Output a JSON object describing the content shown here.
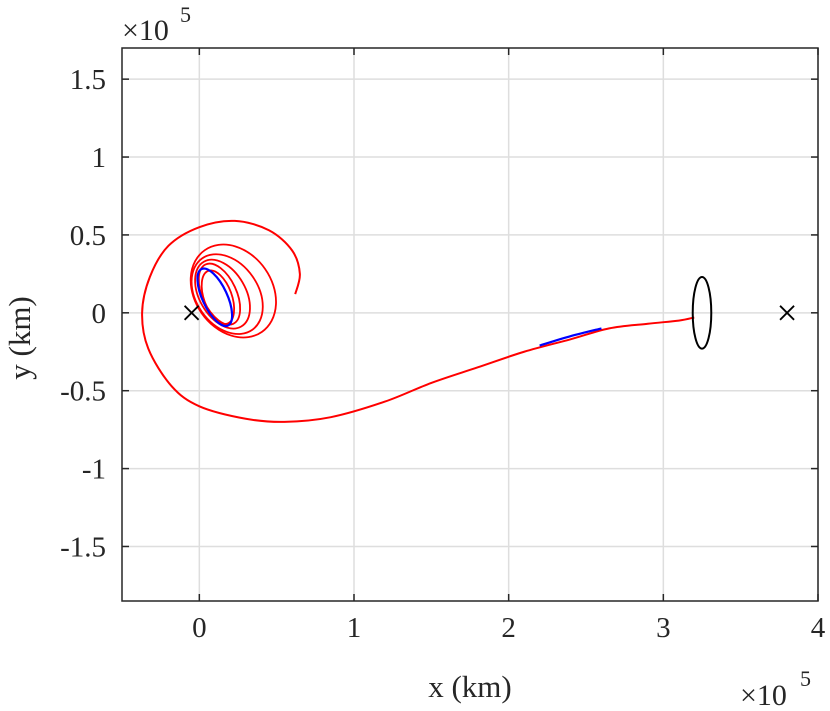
{
  "chart_data": {
    "type": "line",
    "xlabel": "x (km)",
    "ylabel": "y (km)",
    "x_exponent_label": "×10",
    "x_exponent_power": "5",
    "y_exponent_label": "×10",
    "y_exponent_power": "5",
    "xlim": [
      -0.5,
      4
    ],
    "ylim": [
      -1.85,
      1.7
    ],
    "xticks": [
      {
        "value": 0,
        "label": "0"
      },
      {
        "value": 1,
        "label": "1"
      },
      {
        "value": 2,
        "label": "2"
      },
      {
        "value": 3,
        "label": "3"
      },
      {
        "value": 4,
        "label": "4"
      }
    ],
    "yticks": [
      {
        "value": 1.5,
        "label": "1.5"
      },
      {
        "value": 1,
        "label": "1"
      },
      {
        "value": 0.5,
        "label": "0.5"
      },
      {
        "value": 0,
        "label": "0"
      },
      {
        "value": -0.5,
        "label": "-0.5"
      },
      {
        "value": -1,
        "label": "-1"
      },
      {
        "value": -1.5,
        "label": "-1.5"
      }
    ],
    "grid": true,
    "colors": {
      "red": "#ff0000",
      "blue": "#0000ff",
      "black": "#000000",
      "grid": "#dedede",
      "axis": "#262626"
    },
    "markers": [
      {
        "x": -0.05,
        "y": 0.0
      },
      {
        "x": 3.8,
        "y": 0.0
      }
    ],
    "black_orbit": {
      "cx": 3.25,
      "cy": 0.0,
      "rx": 0.06,
      "ry": 0.23
    },
    "red_loops": [
      {
        "cx": 0.13,
        "cy": 0.12,
        "rx": 0.11,
        "ry": 0.21,
        "rot": -25
      },
      {
        "cx": 0.15,
        "cy": 0.12,
        "rx": 0.15,
        "ry": 0.24,
        "rot": -30
      },
      {
        "cx": 0.18,
        "cy": 0.12,
        "rx": 0.2,
        "ry": 0.28,
        "rot": -35
      },
      {
        "cx": 0.22,
        "cy": 0.14,
        "rx": 0.25,
        "ry": 0.32,
        "rot": -35
      },
      {
        "cx": 0.12,
        "cy": 0.1,
        "rx": 0.09,
        "ry": 0.18,
        "rot": -20
      }
    ],
    "blue_loop": {
      "cx": 0.1,
      "cy": 0.1,
      "rx": 0.08,
      "ry": 0.2,
      "rot": -25
    },
    "red_spiral": [
      [
        0.62,
        0.12
      ],
      [
        0.65,
        0.25
      ],
      [
        0.6,
        0.4
      ],
      [
        0.45,
        0.53
      ],
      [
        0.23,
        0.59
      ],
      [
        0.0,
        0.55
      ],
      [
        -0.2,
        0.43
      ],
      [
        -0.32,
        0.23
      ],
      [
        -0.37,
        0.0
      ],
      [
        -0.33,
        -0.23
      ],
      [
        -0.18,
        -0.47
      ],
      [
        0.0,
        -0.6
      ],
      [
        0.3,
        -0.68
      ],
      [
        0.55,
        -0.7
      ],
      [
        0.85,
        -0.67
      ],
      [
        1.2,
        -0.57
      ],
      [
        1.5,
        -0.45
      ],
      [
        1.8,
        -0.35
      ],
      [
        2.1,
        -0.25
      ],
      [
        2.4,
        -0.17
      ],
      [
        2.65,
        -0.1
      ],
      [
        2.9,
        -0.07
      ],
      [
        3.1,
        -0.05
      ],
      [
        3.2,
        -0.03
      ]
    ],
    "blue_transfer": [
      [
        2.2,
        -0.21
      ],
      [
        2.4,
        -0.15
      ],
      [
        2.6,
        -0.1
      ]
    ]
  }
}
